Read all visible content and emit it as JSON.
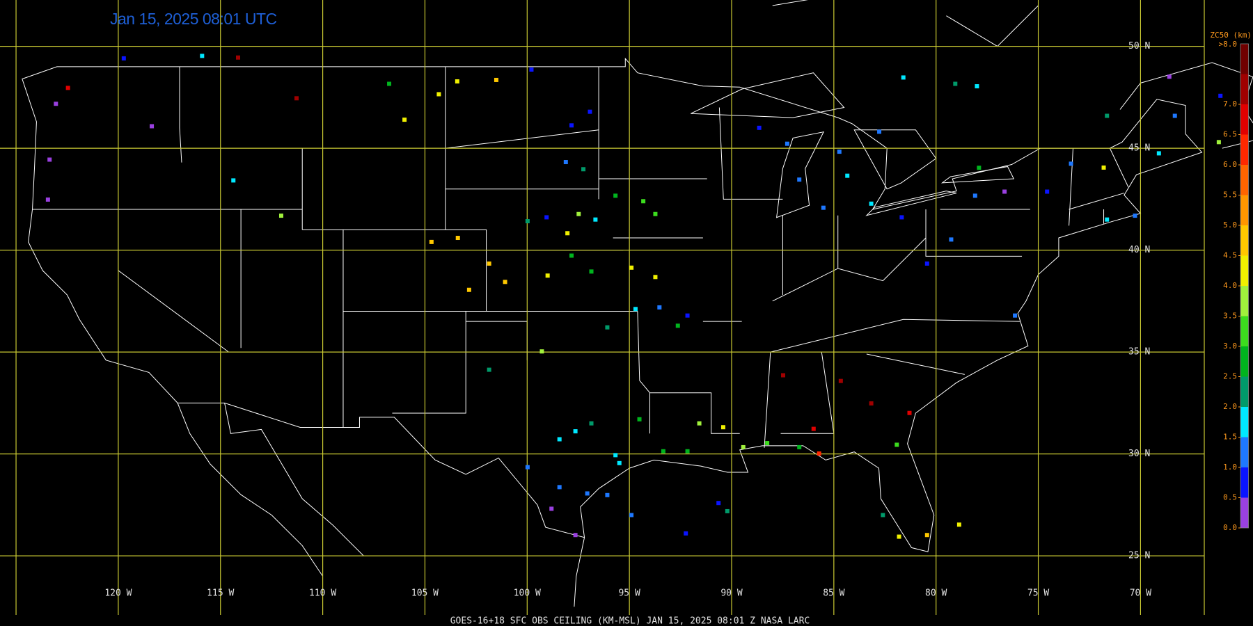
{
  "title": "Jan 15, 2025 08:01 UTC",
  "footer": "GOES-16+18  SFC OBS CEILING (KM-MSL)   JAN 15, 2025 08:01 Z   NASA LARC",
  "lat_grid": [
    {
      "value": 50,
      "label": "50 N"
    },
    {
      "value": 45,
      "label": "45 N"
    },
    {
      "value": 40,
      "label": "40 N"
    },
    {
      "value": 35,
      "label": "35 N"
    },
    {
      "value": 30,
      "label": "30 N"
    },
    {
      "value": 25,
      "label": "25 N"
    }
  ],
  "lon_grid": [
    {
      "value": -125,
      "label": null
    },
    {
      "value": -120,
      "label": "120 W"
    },
    {
      "value": -115,
      "label": "115 W"
    },
    {
      "value": -110,
      "label": "110 W"
    },
    {
      "value": -105,
      "label": "105 W"
    },
    {
      "value": -100,
      "label": "100 W"
    },
    {
      "value": -95,
      "label": "95 W"
    },
    {
      "value": -90,
      "label": "90 W"
    },
    {
      "value": -85,
      "label": "85 W"
    },
    {
      "value": -80,
      "label": "80 W"
    },
    {
      "value": -75,
      "label": "75 W"
    },
    {
      "value": -70,
      "label": "70 W"
    }
  ],
  "colorbar": {
    "title": "ZC50 (km)",
    "top_label": ">8.0",
    "range": [
      0,
      8
    ],
    "colors": [
      "#9a40e0",
      "#0a14ff",
      "#1e78ff",
      "#00e8ff",
      "#009a6a",
      "#00b41e",
      "#3cdc1e",
      "#a0f03c",
      "#f0f000",
      "#ffc800",
      "#ff9600",
      "#ff6400",
      "#ff2800",
      "#e00000",
      "#a00000",
      "#700000"
    ],
    "ticks": [
      {
        "value": 0,
        "label": "0.0"
      },
      0.5,
      {
        "value": 1,
        "label": "1.0"
      },
      1.5,
      {
        "value": 2,
        "label": "2.0"
      },
      2.5,
      {
        "value": 3,
        "label": "3.0"
      },
      3.5,
      {
        "value": 4,
        "label": "4.0"
      },
      4.5,
      {
        "value": 5,
        "label": "5.0"
      },
      5.5,
      {
        "value": 6,
        "label": "6.0"
      },
      6.5,
      {
        "value": 7,
        "label": "7.0"
      }
    ]
  },
  "observations": {
    "lon": [
      -123.05,
      -123.36,
      -123.44,
      -122.46,
      -119.73,
      -118.36,
      -115.9,
      -114.14,
      -111.28,
      -114.37,
      -112.03,
      -106.75,
      -106.0,
      -104.32,
      -103.42,
      -101.51,
      -104.68,
      -103.39,
      -101.86,
      -101.08,
      -102.84,
      -99.79,
      -97.83,
      -96.93,
      -98.11,
      -97.25,
      -99.98,
      -99.05,
      -98.03,
      -97.48,
      -96.66,
      -95.68,
      -94.32,
      -93.73,
      -94.9,
      -93.73,
      -99.0,
      -97.83,
      -96.86,
      -94.7,
      -93.53,
      -92.16,
      -96.08,
      -92.63,
      -99.28,
      -101.86,
      -98.42,
      -97.64,
      -99.98,
      -98.42,
      -98.81,
      -97.64,
      -95.49,
      -95.68,
      -96.86,
      -94.51,
      -96.08,
      -97.06,
      -94.9,
      -93.34,
      -92.16,
      -91.58,
      -90.41,
      -89.43,
      -88.26,
      -86.69,
      -85.99,
      -85.72,
      -87.48,
      -84.66,
      -83.17,
      -81.3,
      -81.92,
      -80.44,
      -81.81,
      -78.87,
      -82.6,
      -92.24,
      -90.64,
      -90.21,
      -86.69,
      -84.73,
      -84.34,
      -83.17,
      -85.51,
      -82.78,
      -88.65,
      -87.28,
      -81.6,
      -79.06,
      -78.0,
      -81.68,
      -80.44,
      -79.26,
      -78.09,
      -76.65,
      -76.14,
      -74.57,
      -73.4,
      -71.64,
      -70.27,
      -71.8,
      -69.1,
      -68.32,
      -66.09,
      -66.17,
      -68.59,
      -71.64,
      -77.9
    ],
    "lat": [
      47.18,
      44.44,
      42.48,
      47.96,
      49.41,
      46.08,
      49.53,
      49.45,
      47.45,
      43.42,
      41.69,
      48.16,
      46.4,
      47.65,
      48.28,
      48.35,
      40.4,
      40.6,
      39.34,
      38.44,
      38.05,
      48.86,
      46.12,
      46.79,
      44.32,
      43.97,
      41.42,
      41.61,
      40.83,
      41.77,
      41.5,
      42.67,
      42.4,
      41.77,
      39.14,
      38.68,
      38.75,
      39.73,
      38.95,
      37.11,
      37.19,
      36.79,
      36.21,
      36.29,
      35.03,
      34.13,
      30.72,
      31.11,
      29.35,
      28.37,
      27.31,
      26.02,
      29.55,
      29.94,
      31.5,
      31.7,
      27.98,
      28.06,
      27.0,
      30.13,
      30.13,
      31.5,
      31.31,
      30.33,
      30.53,
      30.33,
      31.23,
      30.02,
      33.86,
      33.58,
      32.48,
      32.01,
      30.45,
      26.02,
      25.94,
      26.53,
      27.0,
      26.1,
      27.59,
      27.19,
      43.46,
      44.83,
      43.65,
      42.28,
      42.08,
      45.81,
      46.0,
      45.22,
      48.47,
      48.16,
      48.04,
      41.61,
      39.34,
      40.52,
      42.67,
      42.87,
      36.79,
      42.87,
      44.24,
      41.5,
      41.69,
      44.05,
      44.75,
      46.59,
      47.57,
      45.3,
      48.51,
      46.59,
      44.04
    ],
    "values": [
      0.3,
      0.3,
      0.3,
      6.8,
      0.8,
      0.3,
      1.8,
      7.3,
      7.3,
      1.8,
      3.7,
      2.8,
      4.2,
      4.2,
      4.2,
      4.7,
      4.7,
      4.7,
      4.8,
      4.8,
      4.7,
      0.8,
      0.8,
      0.8,
      1.2,
      2.2,
      2.2,
      0.8,
      4.2,
      3.7,
      1.8,
      2.8,
      3.0,
      3.4,
      4.2,
      4.0,
      4.2,
      2.8,
      2.8,
      1.8,
      1.2,
      0.8,
      2.2,
      2.8,
      3.5,
      2.3,
      1.8,
      1.8,
      1.2,
      1.0,
      0.3,
      0.3,
      1.8,
      1.8,
      2.2,
      2.8,
      1.0,
      1.0,
      1.0,
      2.8,
      2.8,
      3.5,
      4.0,
      3.5,
      3.0,
      2.8,
      6.8,
      6.0,
      7.3,
      7.3,
      7.3,
      6.8,
      3.0,
      4.5,
      4.2,
      4.2,
      2.2,
      0.8,
      0.8,
      2.2,
      1.0,
      1.2,
      1.8,
      1.8,
      1.0,
      1.2,
      0.8,
      1.0,
      1.8,
      2.3,
      1.8,
      0.8,
      0.8,
      1.0,
      1.2,
      0.3,
      1.0,
      0.8,
      1.2,
      1.8,
      1.2,
      4.2,
      1.8,
      1.2,
      0.8,
      3.5,
      0.3,
      2.2,
      2.8
    ]
  }
}
